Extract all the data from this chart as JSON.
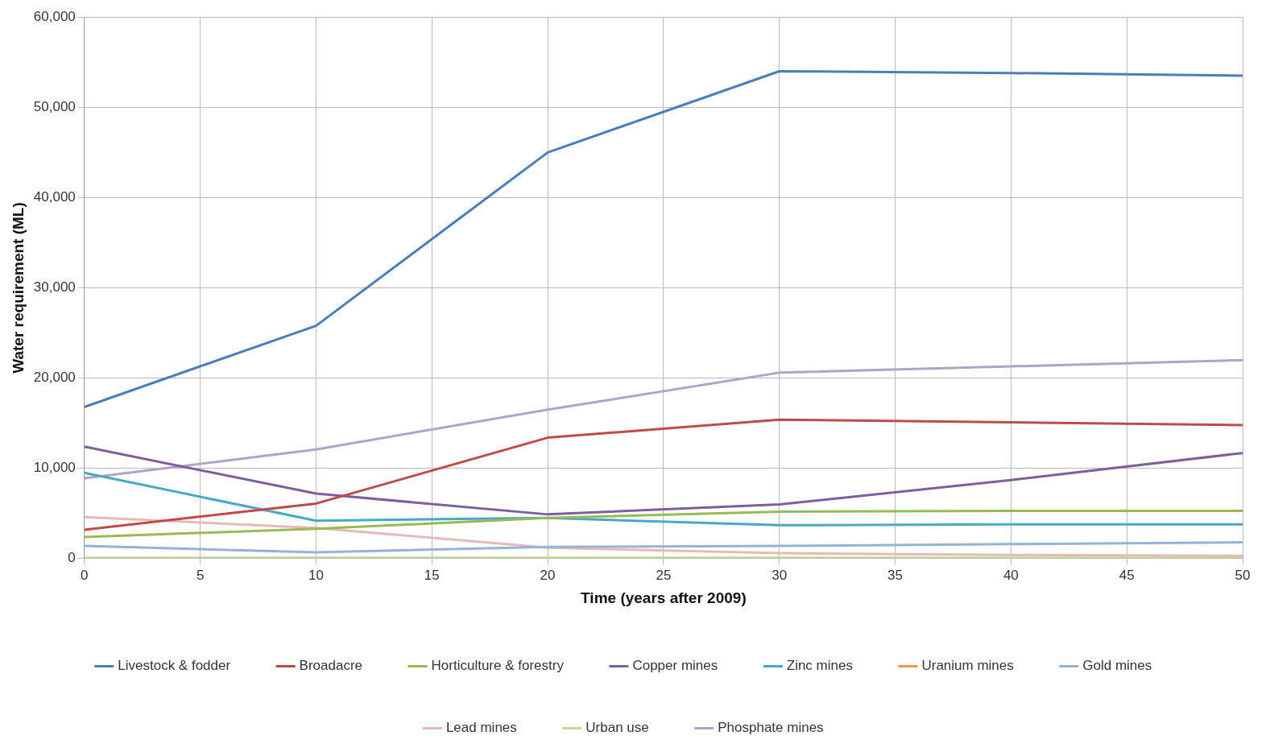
{
  "chart_data": {
    "type": "line",
    "xlabel": "Time (years after 2009)",
    "ylabel": "Water requirement (ML)",
    "x": [
      0,
      10,
      20,
      30,
      40,
      50
    ],
    "series": [
      {
        "name": "Livestock & fodder",
        "color": "#4a7ebb",
        "values": [
          16800,
          25800,
          45000,
          54000,
          53800,
          53500
        ]
      },
      {
        "name": "Broadacre",
        "color": "#be4b48",
        "values": [
          3200,
          6100,
          13400,
          15400,
          15100,
          14800
        ]
      },
      {
        "name": "Horticulture & forestry",
        "color": "#98b954",
        "values": [
          2400,
          3300,
          4500,
          5200,
          5300,
          5300
        ]
      },
      {
        "name": "Copper mines",
        "color": "#7d5fa0",
        "values": [
          12400,
          7200,
          4900,
          6000,
          8700,
          11700
        ]
      },
      {
        "name": "Zinc mines",
        "color": "#46aac5",
        "values": [
          9500,
          4200,
          4500,
          3700,
          3800,
          3800
        ]
      },
      {
        "name": "Uranium mines",
        "color": "#f79646",
        "values": [
          null,
          null,
          null,
          null,
          null,
          null
        ]
      },
      {
        "name": "Gold mines",
        "color": "#95b3d7",
        "values": [
          1400,
          700,
          1300,
          1400,
          1600,
          1800
        ]
      },
      {
        "name": "Lead mines",
        "color": "#e6b9b8",
        "values": [
          4600,
          3400,
          1200,
          600,
          400,
          300
        ]
      },
      {
        "name": "Urban use",
        "color": "#c3d69b",
        "values": [
          100,
          100,
          100,
          100,
          100,
          100
        ]
      },
      {
        "name": "Phosphate mines",
        "color": "#b3a2c7",
        "values": [
          8900,
          12100,
          16500,
          20600,
          21300,
          22000
        ]
      }
    ],
    "xlim": [
      0,
      50
    ],
    "xticks": [
      0,
      5,
      10,
      15,
      20,
      25,
      30,
      35,
      40,
      45,
      50
    ],
    "ylim": [
      0,
      60000
    ],
    "yticks": [
      0,
      {
        "value": 10000,
        "label": "10,000"
      },
      {
        "value": 20000,
        "label": "20,000"
      },
      {
        "value": 30000,
        "label": "30,000"
      },
      {
        "value": 40000,
        "label": "40,000"
      },
      {
        "value": 50000,
        "label": "50,000"
      },
      {
        "value": 60000,
        "label": "60,000"
      }
    ],
    "grid": true,
    "legend": "bottom",
    "marker": "none",
    "line_style": "solid"
  }
}
